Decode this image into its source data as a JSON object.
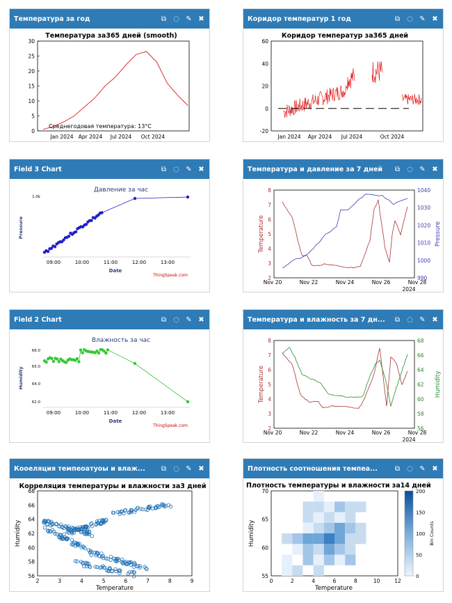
{
  "icons": [
    "external-link-icon",
    "comment-icon",
    "pencil-icon",
    "close-icon"
  ],
  "icon_glyphs": [
    "⧉",
    "◌",
    "✎",
    "✖"
  ],
  "panels": [
    {
      "title": "Температура за год"
    },
    {
      "title": "Коридор температур 1 год"
    },
    {
      "title": "Field 3 Chart"
    },
    {
      "title": "Температура и давление за 7 дней"
    },
    {
      "title": "Field 2 Chart"
    },
    {
      "title": "Температура и влажность за 7 дн..."
    },
    {
      "title": "Кооеляция темпеоатуоы и влаж..."
    },
    {
      "title": "Плотность соотношения темпеа..."
    }
  ],
  "chart_data": [
    {
      "type": "line",
      "title": "Температура за365 дней (smooth)",
      "xticks": [
        "Jan 2024",
        "Apr 2024",
        "Jul 2024",
        "Oct 2024"
      ],
      "ylim": [
        0,
        30
      ],
      "yticks": [
        "0",
        "5",
        "10",
        "15",
        "20",
        "25",
        "30"
      ],
      "annotation": "Среднегодовая температура: 13°C",
      "color": "#d9352c",
      "x": [
        0,
        1,
        2,
        3,
        4,
        5,
        6,
        7,
        8,
        9,
        10,
        11,
        12,
        13,
        14
      ],
      "y": [
        0.5,
        1.5,
        3,
        5,
        8,
        11,
        15,
        18,
        22,
        25.5,
        26.5,
        23,
        16,
        12,
        8.5
      ]
    },
    {
      "type": "line",
      "title": "Коридор температур за365 дней",
      "xticks": [
        "Jan 2024",
        "Apr 2024",
        "Jul 2024",
        "Oct 2024"
      ],
      "ylim": [
        -20,
        60
      ],
      "yticks": [
        "-20",
        "0",
        "20",
        "40",
        "60"
      ],
      "color": "#e00000"
    },
    {
      "type": "scatter",
      "title": "Давление за час",
      "ylabel": "Pressure",
      "xlabel": "Date",
      "xticks": [
        "09:00",
        "10:00",
        "11:00",
        "12:00",
        "13:00"
      ],
      "yticks": [
        "1.0k"
      ],
      "credit": "ThingSpeak.com",
      "color": "#1f1fc8"
    },
    {
      "type": "line",
      "xticks": [
        "Nov 20",
        "Nov 22",
        "Nov 24",
        "Nov 26",
        "Nov 28"
      ],
      "xnote": "2024",
      "ylabel": "Temperature",
      "y2label": "Pressure",
      "yticks": [
        "2",
        "3",
        "4",
        "5",
        "6",
        "7",
        "8"
      ],
      "y2ticks": [
        "990",
        "1000",
        "1010",
        "1020",
        "1030",
        "1040"
      ],
      "series": [
        {
          "name": "Temperature",
          "color": "#a83232"
        },
        {
          "name": "Pressure",
          "color": "#3c3cb4"
        }
      ]
    },
    {
      "type": "scatter",
      "title": "Влажность за час",
      "ylabel": "Humidity",
      "xlabel": "Date",
      "xticks": [
        "09:00",
        "10:00",
        "11:00",
        "12:00",
        "13:00"
      ],
      "yticks": [
        "66.0",
        "65.0",
        "64.0",
        "62.0"
      ],
      "credit": "ThingSpeak.com",
      "color": "#36c836"
    },
    {
      "type": "line",
      "xticks": [
        "Nov 20",
        "Nov 22",
        "Nov 24",
        "Nov 26",
        "Nov 28"
      ],
      "xnote": "2024",
      "ylabel": "Temperature",
      "y2label": "Humidity",
      "yticks": [
        "2",
        "3",
        "4",
        "5",
        "6",
        "7",
        "8"
      ],
      "y2ticks": [
        "56",
        "58",
        "60",
        "62",
        "64",
        "66",
        "68"
      ],
      "series": [
        {
          "name": "Temperature",
          "color": "#a83232"
        },
        {
          "name": "Humidity",
          "color": "#2a8a2a"
        }
      ]
    },
    {
      "type": "scatter",
      "title": "Корреляция температуры и влажности за3 дней",
      "xlabel": "Temperature",
      "ylabel": "Humidity",
      "xticks": [
        "2",
        "3",
        "4",
        "5",
        "6",
        "7",
        "8",
        "9"
      ],
      "yticks": [
        "56",
        "58",
        "60",
        "62",
        "64",
        "66",
        "68"
      ],
      "color": "#1f6fb4"
    },
    {
      "type": "heatmap",
      "title": "Плотность температуры и влажности за14 дней",
      "xlabel": "Temperature",
      "ylabel": "Humidity",
      "cbar_label": "Bin Counts",
      "xticks": [
        "0",
        "2",
        "4",
        "6",
        "8",
        "10",
        "12"
      ],
      "yticks": [
        "55",
        "60",
        "65",
        "70"
      ],
      "cbar_ticks": [
        "0",
        "50",
        "100",
        "150",
        "200"
      ]
    }
  ]
}
